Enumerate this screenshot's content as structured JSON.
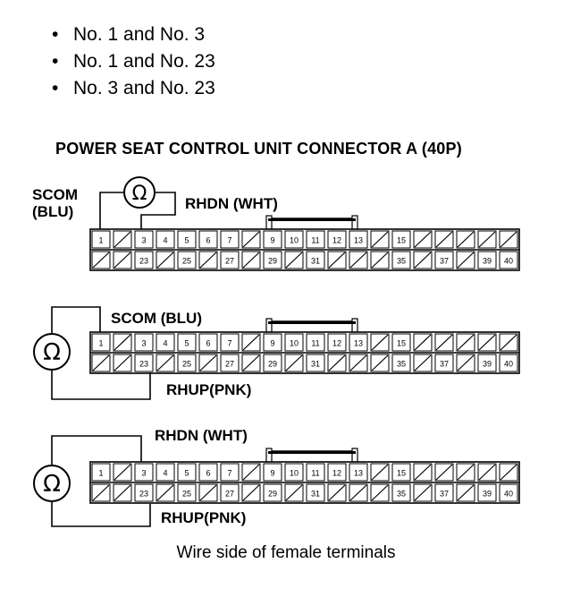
{
  "bullets": [
    "No. 1 and No. 3",
    "No. 1 and No. 23",
    "No. 3 and No. 23"
  ],
  "title": "POWER SEAT CONTROL UNIT CONNECTOR A (40P)",
  "caption": "Wire side of female terminals",
  "ohm_symbol": "Ω",
  "connector": {
    "top_row": [
      "1",
      "",
      "3",
      "4",
      "5",
      "6",
      "7",
      "",
      "9",
      "10",
      "11",
      "12",
      "13",
      "",
      "15",
      "",
      "",
      "",
      "",
      ""
    ],
    "bottom_row": [
      "",
      "",
      "23",
      "",
      "25",
      "",
      "27",
      "",
      "29",
      "",
      "31",
      "",
      "",
      "",
      "35",
      "",
      "37",
      "",
      "39",
      "40"
    ]
  },
  "diagrams": [
    {
      "labels": {
        "scom": "SCOM\n(BLU)",
        "rhdn": "RHDN (WHT)"
      }
    },
    {
      "labels": {
        "scom": "SCOM (BLU)",
        "rhup": "RHUP(PNK)"
      }
    },
    {
      "labels": {
        "rhdn": "RHDN (WHT)",
        "rhup": "RHUP(PNK)"
      }
    }
  ]
}
